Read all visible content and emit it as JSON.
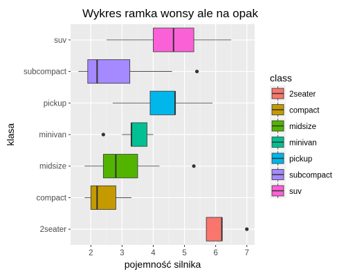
{
  "chart_data": {
    "type": "boxplot",
    "orientation": "horizontal",
    "title": "Wykres ramka wonsy ale na opak",
    "xlabel": "pojemność silnika",
    "ylabel": "klasa",
    "xlim": [
      1.35,
      7.25
    ],
    "x_ticks": [
      2,
      3,
      4,
      5,
      6,
      7
    ],
    "grid": true,
    "legend_position": "right",
    "legend_title": "class",
    "categories": [
      "2seater",
      "compact",
      "midsize",
      "minivan",
      "pickup",
      "subcompact",
      "suv"
    ],
    "boxes": [
      {
        "name": "2seater",
        "color": "#F8766D",
        "whisker_low": 5.7,
        "q1": 5.7,
        "median": 6.2,
        "q3": 6.2,
        "whisker_high": 6.2,
        "outliers": [
          7.0
        ]
      },
      {
        "name": "compact",
        "color": "#C49A00",
        "whisker_low": 1.8,
        "q1": 2.0,
        "median": 2.2,
        "q3": 2.8,
        "whisker_high": 3.3,
        "outliers": []
      },
      {
        "name": "midsize",
        "color": "#53B400",
        "whisker_low": 1.8,
        "q1": 2.4,
        "median": 2.8,
        "q3": 3.5,
        "whisker_high": 4.2,
        "outliers": [
          5.3
        ]
      },
      {
        "name": "minivan",
        "color": "#00C094",
        "whisker_low": 3.0,
        "q1": 3.3,
        "median": 3.3,
        "q3": 3.8,
        "whisker_high": 4.0,
        "outliers": [
          2.4
        ]
      },
      {
        "name": "pickup",
        "color": "#00B6EB",
        "whisker_low": 2.7,
        "q1": 3.9,
        "median": 4.7,
        "q3": 4.7,
        "whisker_high": 5.9,
        "outliers": []
      },
      {
        "name": "subcompact",
        "color": "#A58AFF",
        "whisker_low": 1.6,
        "q1": 1.9,
        "median": 2.2,
        "q3": 3.25,
        "whisker_high": 4.6,
        "outliers": [
          5.4
        ]
      },
      {
        "name": "suv",
        "color": "#FB61D7",
        "whisker_low": 2.5,
        "q1": 4.0,
        "median": 4.65,
        "q3": 5.3,
        "whisker_high": 6.5,
        "outliers": []
      }
    ]
  }
}
